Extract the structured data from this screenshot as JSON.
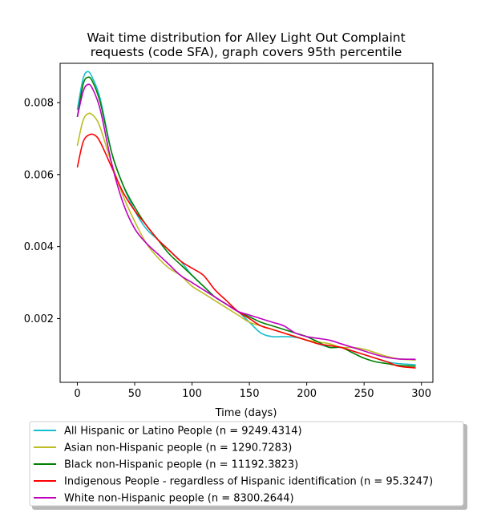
{
  "chart_data": {
    "type": "line",
    "title": [
      "Wait time distribution  for Alley Light Out Complaint",
      "requests (code SFA), graph covers 95th percentile"
    ],
    "xlabel": "Time (days)",
    "ylabel": "",
    "xlim": [
      -15,
      310
    ],
    "ylim": [
      0.00023,
      0.00909
    ],
    "xticks": [
      0,
      50,
      100,
      150,
      200,
      250,
      300
    ],
    "yticks": [
      0.002,
      0.004,
      0.006,
      0.008
    ],
    "ytick_labels": [
      "0.002",
      "0.004",
      "0.006",
      "0.008"
    ],
    "grid": false,
    "legend_position": "below chart",
    "series": [
      {
        "name": "All Hispanic or Latino People (n = 9249.4314)",
        "color": "#17becf",
        "points": [
          [
            0,
            0.0078
          ],
          [
            5,
            0.00866
          ],
          [
            9,
            0.00886
          ],
          [
            13,
            0.0087
          ],
          [
            20,
            0.0081
          ],
          [
            30,
            0.0066
          ],
          [
            40,
            0.0057
          ],
          [
            50,
            0.005
          ],
          [
            60,
            0.0045
          ],
          [
            70,
            0.0042
          ],
          [
            80,
            0.0039
          ],
          [
            90,
            0.0036
          ],
          [
            100,
            0.0032
          ],
          [
            110,
            0.0029
          ],
          [
            120,
            0.0026
          ],
          [
            130,
            0.0024
          ],
          [
            140,
            0.0022
          ],
          [
            150,
            0.0019
          ],
          [
            160,
            0.0016
          ],
          [
            170,
            0.0015
          ],
          [
            180,
            0.0015
          ],
          [
            190,
            0.00148
          ],
          [
            200,
            0.0014
          ],
          [
            210,
            0.0013
          ],
          [
            220,
            0.0012
          ],
          [
            230,
            0.0012
          ],
          [
            240,
            0.0011
          ],
          [
            250,
            0.001
          ],
          [
            260,
            0.0009
          ],
          [
            270,
            0.0008
          ],
          [
            280,
            0.00075
          ],
          [
            295,
            0.00072
          ]
        ]
      },
      {
        "name": "Asian non-Hispanic people (n = 1290.7283)",
        "color": "#bcbd22",
        "points": [
          [
            0,
            0.0068
          ],
          [
            5,
            0.0075
          ],
          [
            10,
            0.0077
          ],
          [
            15,
            0.0076
          ],
          [
            20,
            0.0073
          ],
          [
            30,
            0.0063
          ],
          [
            40,
            0.0054
          ],
          [
            50,
            0.0047
          ],
          [
            60,
            0.0041
          ],
          [
            70,
            0.0037
          ],
          [
            80,
            0.0034
          ],
          [
            90,
            0.0032
          ],
          [
            100,
            0.0029
          ],
          [
            110,
            0.0027
          ],
          [
            120,
            0.0025
          ],
          [
            130,
            0.0023
          ],
          [
            140,
            0.0021
          ],
          [
            150,
            0.0019
          ],
          [
            160,
            0.0018
          ],
          [
            170,
            0.0017
          ],
          [
            180,
            0.0016
          ],
          [
            190,
            0.0015
          ],
          [
            200,
            0.0014
          ],
          [
            210,
            0.00135
          ],
          [
            220,
            0.0013
          ],
          [
            230,
            0.0012
          ],
          [
            240,
            0.0012
          ],
          [
            250,
            0.00115
          ],
          [
            260,
            0.00105
          ],
          [
            270,
            0.00095
          ],
          [
            280,
            0.00088
          ],
          [
            295,
            0.00085
          ]
        ]
      },
      {
        "name": "Black non-Hispanic people (n = 11192.3823)",
        "color": "#008000",
        "points": [
          [
            0,
            0.0076
          ],
          [
            5,
            0.0085
          ],
          [
            9,
            0.0087
          ],
          [
            13,
            0.0086
          ],
          [
            20,
            0.008
          ],
          [
            30,
            0.0066
          ],
          [
            40,
            0.0057
          ],
          [
            50,
            0.0051
          ],
          [
            60,
            0.0046
          ],
          [
            70,
            0.0042
          ],
          [
            80,
            0.0038
          ],
          [
            90,
            0.0035
          ],
          [
            100,
            0.0032
          ],
          [
            110,
            0.0029
          ],
          [
            120,
            0.0026
          ],
          [
            130,
            0.0024
          ],
          [
            140,
            0.0022
          ],
          [
            150,
            0.00205
          ],
          [
            160,
            0.0019
          ],
          [
            170,
            0.0018
          ],
          [
            180,
            0.0017
          ],
          [
            190,
            0.0016
          ],
          [
            200,
            0.0015
          ],
          [
            210,
            0.00135
          ],
          [
            220,
            0.0012
          ],
          [
            230,
            0.0012
          ],
          [
            240,
            0.00105
          ],
          [
            250,
            0.0009
          ],
          [
            260,
            0.0008
          ],
          [
            270,
            0.00075
          ],
          [
            280,
            0.0007
          ],
          [
            295,
            0.00068
          ]
        ]
      },
      {
        "name": "Indigenous People - regardless of Hispanic identification (n = 95.3247)",
        "color": "#ff0000",
        "points": [
          [
            0,
            0.0062
          ],
          [
            5,
            0.0069
          ],
          [
            10,
            0.0071
          ],
          [
            15,
            0.0071
          ],
          [
            20,
            0.0069
          ],
          [
            30,
            0.0062
          ],
          [
            40,
            0.0055
          ],
          [
            50,
            0.005
          ],
          [
            60,
            0.0046
          ],
          [
            70,
            0.0042
          ],
          [
            80,
            0.0039
          ],
          [
            90,
            0.0036
          ],
          [
            100,
            0.0034
          ],
          [
            110,
            0.0032
          ],
          [
            120,
            0.0028
          ],
          [
            130,
            0.0025
          ],
          [
            140,
            0.0022
          ],
          [
            150,
            0.002
          ],
          [
            160,
            0.0018
          ],
          [
            170,
            0.0017
          ],
          [
            180,
            0.0016
          ],
          [
            190,
            0.0015
          ],
          [
            200,
            0.0014
          ],
          [
            210,
            0.0013
          ],
          [
            220,
            0.00125
          ],
          [
            230,
            0.0012
          ],
          [
            240,
            0.0011
          ],
          [
            250,
            0.001
          ],
          [
            260,
            0.0009
          ],
          [
            270,
            0.0008
          ],
          [
            280,
            0.00068
          ],
          [
            295,
            0.00063
          ]
        ]
      },
      {
        "name": "White non-Hispanic people (n = 8300.2644)",
        "color": "#bf00bf",
        "points": [
          [
            0,
            0.0076
          ],
          [
            5,
            0.0083
          ],
          [
            9,
            0.0085
          ],
          [
            13,
            0.0084
          ],
          [
            20,
            0.0078
          ],
          [
            30,
            0.0063
          ],
          [
            40,
            0.0052
          ],
          [
            50,
            0.0045
          ],
          [
            60,
            0.0041
          ],
          [
            70,
            0.0038
          ],
          [
            80,
            0.0035
          ],
          [
            90,
            0.0032
          ],
          [
            100,
            0.003
          ],
          [
            110,
            0.0028
          ],
          [
            120,
            0.0026
          ],
          [
            130,
            0.0024
          ],
          [
            140,
            0.0022
          ],
          [
            150,
            0.0021
          ],
          [
            160,
            0.002
          ],
          [
            170,
            0.0019
          ],
          [
            180,
            0.0018
          ],
          [
            190,
            0.0016
          ],
          [
            200,
            0.0015
          ],
          [
            210,
            0.00145
          ],
          [
            220,
            0.0014
          ],
          [
            230,
            0.0013
          ],
          [
            240,
            0.0012
          ],
          [
            250,
            0.0011
          ],
          [
            260,
            0.001
          ],
          [
            270,
            0.00092
          ],
          [
            280,
            0.00088
          ],
          [
            295,
            0.00087
          ]
        ]
      }
    ]
  }
}
